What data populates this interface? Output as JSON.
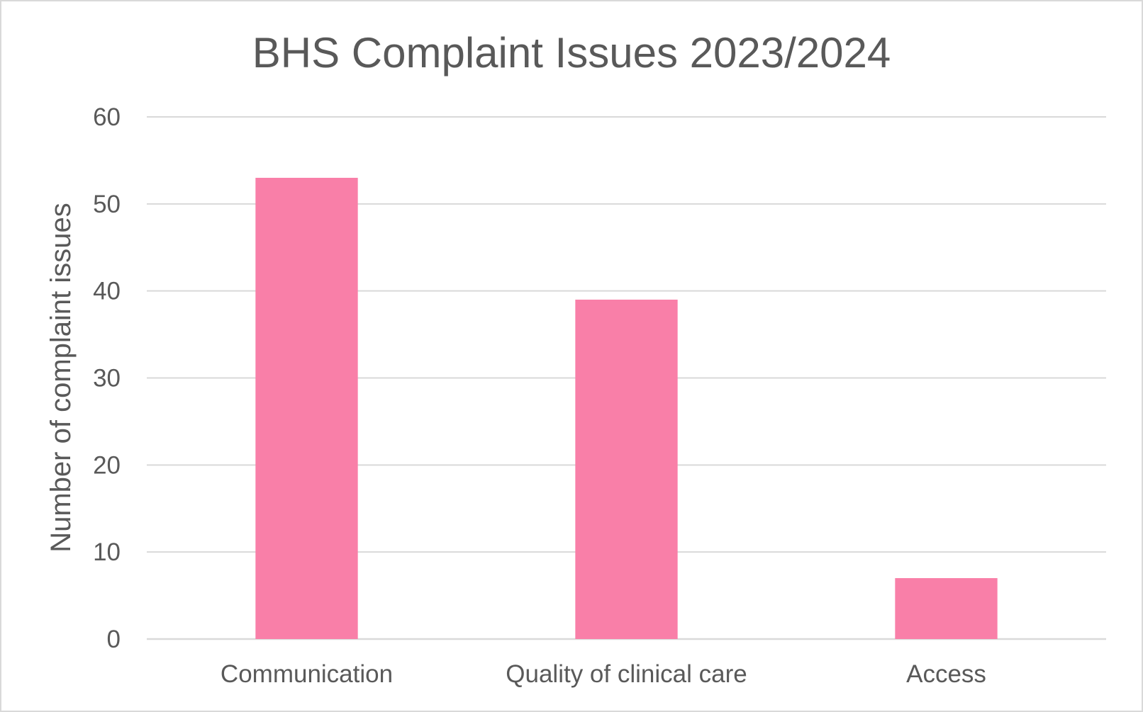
{
  "chart_data": {
    "type": "bar",
    "title": "BHS Complaint Issues 2023/2024",
    "xlabel": "",
    "ylabel": "Number of complaint issues",
    "categories": [
      "Communication",
      "Quality of clinical care",
      "Access"
    ],
    "values": [
      53,
      39,
      7
    ],
    "ylim": [
      0,
      60
    ],
    "yticks": [
      "0",
      "10",
      "20",
      "30",
      "40",
      "50",
      "60"
    ],
    "grid": true,
    "legend": "none",
    "colors": {
      "bar": "#f97fa8",
      "grid": "#d9d9d9",
      "text": "#595959"
    }
  }
}
